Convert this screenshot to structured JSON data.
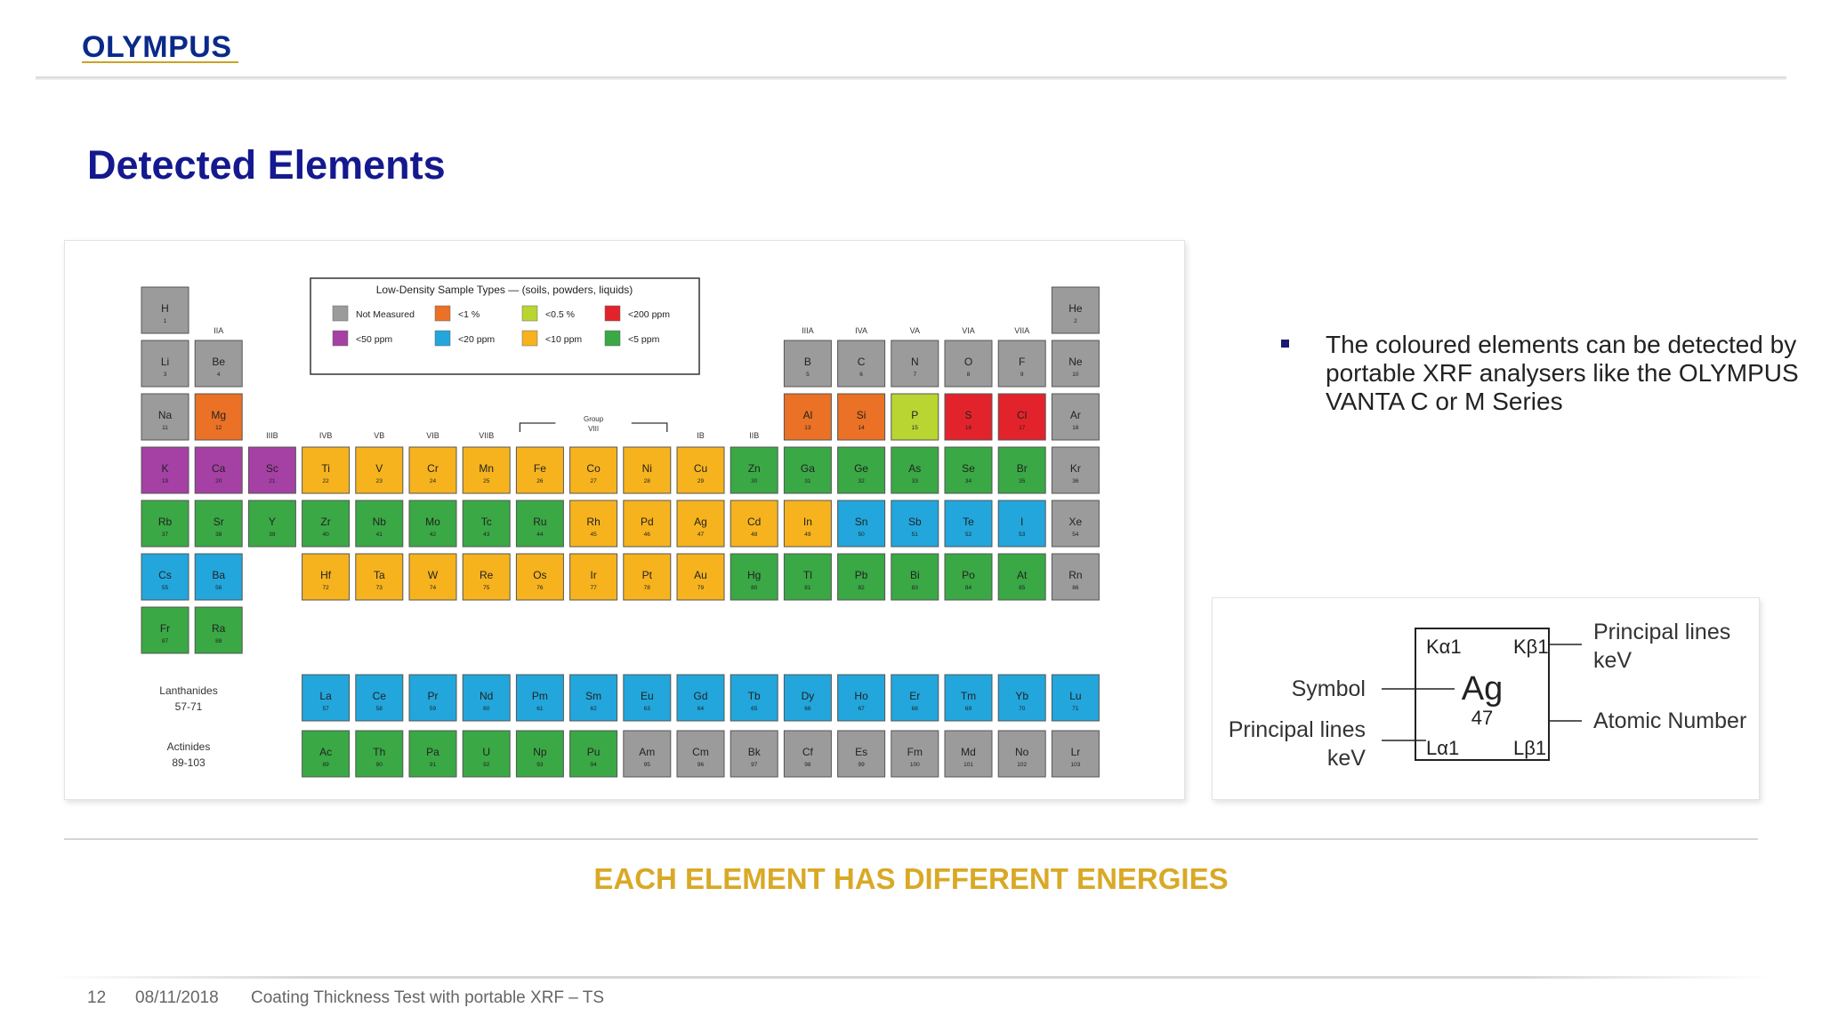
{
  "header": {
    "logo_text": "OLYMPUS"
  },
  "page": {
    "title": "Detected Elements",
    "subtitle": "EACH ELEMENT HAS DIFFERENT ENERGIES"
  },
  "bullets": [
    "The coloured elements can be detected by portable XRF analysers like the OLYMPUS VANTA C or M Series"
  ],
  "colors": {
    "title": "#14198f",
    "subtitle": "#d9a926",
    "not_measured": "#9b9b9b",
    "lt_50ppm": "#a540a4",
    "lt_1pct": "#ea7125",
    "lt_20ppm": "#22a6dc",
    "lt_05pct": "#b9d531",
    "lt_10ppm": "#f6b31e",
    "lt_200ppm": "#e3232b",
    "lt_5ppm": "#3aa845"
  },
  "periodic_table": {
    "legend_title": "Low-Density Sample Types — (soils, powders, liquids)",
    "legend": [
      {
        "label": "Not Measured",
        "color_key": "not_measured"
      },
      {
        "label": "<1 %",
        "color_key": "lt_1pct"
      },
      {
        "label": "<0.5 %",
        "color_key": "lt_05pct"
      },
      {
        "label": "<200 ppm",
        "color_key": "lt_200ppm"
      },
      {
        "label": "<50 ppm",
        "color_key": "lt_50ppm"
      },
      {
        "label": "<20 ppm",
        "color_key": "lt_20ppm"
      },
      {
        "label": "<10 ppm",
        "color_key": "lt_10ppm"
      },
      {
        "label": "<5 ppm",
        "color_key": "lt_5ppm"
      }
    ],
    "group_labels": [
      "IIA",
      "IIIB",
      "IVB",
      "VB",
      "VIB",
      "VIIB",
      "IB",
      "IIB",
      "IIIA",
      "IVA",
      "VA",
      "VIA",
      "VIIA"
    ],
    "group_viii_label": [
      "Group",
      "VIII"
    ],
    "series_labels": [
      {
        "name": "Lanthanides",
        "range": "57-71"
      },
      {
        "name": "Actinides",
        "range": "89-103"
      }
    ],
    "elements": [
      {
        "sym": "H",
        "z": 1,
        "cat": "not_measured"
      },
      {
        "sym": "He",
        "z": 2,
        "cat": "not_measured"
      },
      {
        "sym": "Li",
        "z": 3,
        "cat": "not_measured"
      },
      {
        "sym": "Be",
        "z": 4,
        "cat": "not_measured"
      },
      {
        "sym": "B",
        "z": 5,
        "cat": "not_measured"
      },
      {
        "sym": "C",
        "z": 6,
        "cat": "not_measured"
      },
      {
        "sym": "N",
        "z": 7,
        "cat": "not_measured"
      },
      {
        "sym": "O",
        "z": 8,
        "cat": "not_measured"
      },
      {
        "sym": "F",
        "z": 9,
        "cat": "not_measured"
      },
      {
        "sym": "Ne",
        "z": 10,
        "cat": "not_measured"
      },
      {
        "sym": "Na",
        "z": 11,
        "cat": "not_measured"
      },
      {
        "sym": "Mg",
        "z": 12,
        "cat": "lt_1pct"
      },
      {
        "sym": "Al",
        "z": 13,
        "cat": "lt_1pct"
      },
      {
        "sym": "Si",
        "z": 14,
        "cat": "lt_1pct"
      },
      {
        "sym": "P",
        "z": 15,
        "cat": "lt_05pct"
      },
      {
        "sym": "S",
        "z": 16,
        "cat": "lt_200ppm"
      },
      {
        "sym": "Cl",
        "z": 17,
        "cat": "lt_200ppm"
      },
      {
        "sym": "Ar",
        "z": 18,
        "cat": "not_measured"
      },
      {
        "sym": "K",
        "z": 19,
        "cat": "lt_50ppm"
      },
      {
        "sym": "Ca",
        "z": 20,
        "cat": "lt_50ppm"
      },
      {
        "sym": "Sc",
        "z": 21,
        "cat": "lt_50ppm"
      },
      {
        "sym": "Ti",
        "z": 22,
        "cat": "lt_10ppm"
      },
      {
        "sym": "V",
        "z": 23,
        "cat": "lt_10ppm"
      },
      {
        "sym": "Cr",
        "z": 24,
        "cat": "lt_10ppm"
      },
      {
        "sym": "Mn",
        "z": 25,
        "cat": "lt_10ppm"
      },
      {
        "sym": "Fe",
        "z": 26,
        "cat": "lt_10ppm"
      },
      {
        "sym": "Co",
        "z": 27,
        "cat": "lt_10ppm"
      },
      {
        "sym": "Ni",
        "z": 28,
        "cat": "lt_10ppm"
      },
      {
        "sym": "Cu",
        "z": 29,
        "cat": "lt_10ppm"
      },
      {
        "sym": "Zn",
        "z": 30,
        "cat": "lt_5ppm"
      },
      {
        "sym": "Ga",
        "z": 31,
        "cat": "lt_5ppm"
      },
      {
        "sym": "Ge",
        "z": 32,
        "cat": "lt_5ppm"
      },
      {
        "sym": "As",
        "z": 33,
        "cat": "lt_5ppm"
      },
      {
        "sym": "Se",
        "z": 34,
        "cat": "lt_5ppm"
      },
      {
        "sym": "Br",
        "z": 35,
        "cat": "lt_5ppm"
      },
      {
        "sym": "Kr",
        "z": 36,
        "cat": "not_measured"
      },
      {
        "sym": "Rb",
        "z": 37,
        "cat": "lt_5ppm"
      },
      {
        "sym": "Sr",
        "z": 38,
        "cat": "lt_5ppm"
      },
      {
        "sym": "Y",
        "z": 39,
        "cat": "lt_5ppm"
      },
      {
        "sym": "Zr",
        "z": 40,
        "cat": "lt_5ppm"
      },
      {
        "sym": "Nb",
        "z": 41,
        "cat": "lt_5ppm"
      },
      {
        "sym": "Mo",
        "z": 42,
        "cat": "lt_5ppm"
      },
      {
        "sym": "Tc",
        "z": 43,
        "cat": "lt_5ppm"
      },
      {
        "sym": "Ru",
        "z": 44,
        "cat": "lt_5ppm"
      },
      {
        "sym": "Rh",
        "z": 45,
        "cat": "lt_10ppm"
      },
      {
        "sym": "Pd",
        "z": 46,
        "cat": "lt_10ppm"
      },
      {
        "sym": "Ag",
        "z": 47,
        "cat": "lt_10ppm"
      },
      {
        "sym": "Cd",
        "z": 48,
        "cat": "lt_10ppm"
      },
      {
        "sym": "In",
        "z": 49,
        "cat": "lt_10ppm"
      },
      {
        "sym": "Sn",
        "z": 50,
        "cat": "lt_20ppm"
      },
      {
        "sym": "Sb",
        "z": 51,
        "cat": "lt_20ppm"
      },
      {
        "sym": "Te",
        "z": 52,
        "cat": "lt_20ppm"
      },
      {
        "sym": "I",
        "z": 53,
        "cat": "lt_20ppm"
      },
      {
        "sym": "Xe",
        "z": 54,
        "cat": "not_measured"
      },
      {
        "sym": "Cs",
        "z": 55,
        "cat": "lt_20ppm"
      },
      {
        "sym": "Ba",
        "z": 56,
        "cat": "lt_20ppm"
      },
      {
        "sym": "Hf",
        "z": 72,
        "cat": "lt_10ppm"
      },
      {
        "sym": "Ta",
        "z": 73,
        "cat": "lt_10ppm"
      },
      {
        "sym": "W",
        "z": 74,
        "cat": "lt_10ppm"
      },
      {
        "sym": "Re",
        "z": 75,
        "cat": "lt_10ppm"
      },
      {
        "sym": "Os",
        "z": 76,
        "cat": "lt_10ppm"
      },
      {
        "sym": "Ir",
        "z": 77,
        "cat": "lt_10ppm"
      },
      {
        "sym": "Pt",
        "z": 78,
        "cat": "lt_10ppm"
      },
      {
        "sym": "Au",
        "z": 79,
        "cat": "lt_10ppm"
      },
      {
        "sym": "Hg",
        "z": 80,
        "cat": "lt_5ppm"
      },
      {
        "sym": "Tl",
        "z": 81,
        "cat": "lt_5ppm"
      },
      {
        "sym": "Pb",
        "z": 82,
        "cat": "lt_5ppm"
      },
      {
        "sym": "Bi",
        "z": 83,
        "cat": "lt_5ppm"
      },
      {
        "sym": "Po",
        "z": 84,
        "cat": "lt_5ppm"
      },
      {
        "sym": "At",
        "z": 85,
        "cat": "lt_5ppm"
      },
      {
        "sym": "Rn",
        "z": 86,
        "cat": "not_measured"
      },
      {
        "sym": "Fr",
        "z": 87,
        "cat": "lt_5ppm"
      },
      {
        "sym": "Ra",
        "z": 88,
        "cat": "lt_5ppm"
      },
      {
        "sym": "La",
        "z": 57,
        "cat": "lt_20ppm"
      },
      {
        "sym": "Ce",
        "z": 58,
        "cat": "lt_20ppm"
      },
      {
        "sym": "Pr",
        "z": 59,
        "cat": "lt_20ppm"
      },
      {
        "sym": "Nd",
        "z": 60,
        "cat": "lt_20ppm"
      },
      {
        "sym": "Pm",
        "z": 61,
        "cat": "lt_20ppm"
      },
      {
        "sym": "Sm",
        "z": 62,
        "cat": "lt_20ppm"
      },
      {
        "sym": "Eu",
        "z": 63,
        "cat": "lt_20ppm"
      },
      {
        "sym": "Gd",
        "z": 64,
        "cat": "lt_20ppm"
      },
      {
        "sym": "Tb",
        "z": 65,
        "cat": "lt_20ppm"
      },
      {
        "sym": "Dy",
        "z": 66,
        "cat": "lt_20ppm"
      },
      {
        "sym": "Ho",
        "z": 67,
        "cat": "lt_20ppm"
      },
      {
        "sym": "Er",
        "z": 68,
        "cat": "lt_20ppm"
      },
      {
        "sym": "Tm",
        "z": 69,
        "cat": "lt_20ppm"
      },
      {
        "sym": "Yb",
        "z": 70,
        "cat": "lt_20ppm"
      },
      {
        "sym": "Lu",
        "z": 71,
        "cat": "lt_20ppm"
      },
      {
        "sym": "Ac",
        "z": 89,
        "cat": "lt_5ppm"
      },
      {
        "sym": "Th",
        "z": 90,
        "cat": "lt_5ppm"
      },
      {
        "sym": "Pa",
        "z": 91,
        "cat": "lt_5ppm"
      },
      {
        "sym": "U",
        "z": 92,
        "cat": "lt_5ppm"
      },
      {
        "sym": "Np",
        "z": 93,
        "cat": "lt_5ppm"
      },
      {
        "sym": "Pu",
        "z": 94,
        "cat": "lt_5ppm"
      },
      {
        "sym": "Am",
        "z": 95,
        "cat": "not_measured"
      },
      {
        "sym": "Cm",
        "z": 96,
        "cat": "not_measured"
      },
      {
        "sym": "Bk",
        "z": 97,
        "cat": "not_measured"
      },
      {
        "sym": "Cf",
        "z": 98,
        "cat": "not_measured"
      },
      {
        "sym": "Es",
        "z": 99,
        "cat": "not_measured"
      },
      {
        "sym": "Fm",
        "z": 100,
        "cat": "not_measured"
      },
      {
        "sym": "Md",
        "z": 101,
        "cat": "not_measured"
      },
      {
        "sym": "No",
        "z": 102,
        "cat": "not_measured"
      },
      {
        "sym": "Lr",
        "z": 103,
        "cat": "not_measured"
      }
    ]
  },
  "element_key": {
    "symbol": "Ag",
    "atomic_number": "47",
    "ka1": "Kα1",
    "kb1": "Kβ1",
    "la1": "Lα1",
    "lb1": "Lβ1",
    "label_symbol": "Symbol",
    "label_principal_right": [
      "Principal lines",
      "keV"
    ],
    "label_principal_left": [
      "Principal lines",
      "keV"
    ],
    "label_atomic_number": "Atomic Number"
  },
  "footer": {
    "page_number": "12",
    "date": "08/11/2018",
    "text": "Coating Thickness Test with portable XRF – TS"
  }
}
